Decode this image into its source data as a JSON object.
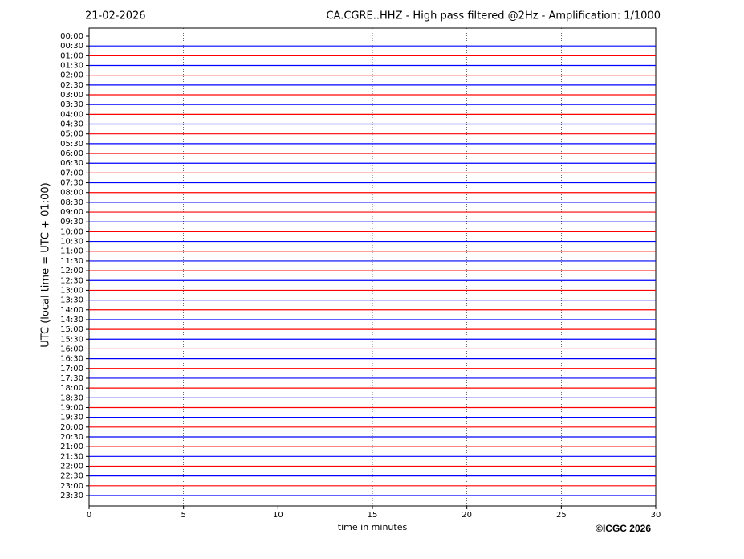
{
  "chart_data": {
    "type": "helicorder",
    "title_left": "21-02-2026",
    "title": "CA.CGRE..HHZ - High pass filtered @2Hz - Amplification: 1/1000",
    "xlabel": "time in minutes",
    "ylabel": "UTC (local time = UTC + 01:00)",
    "copyright": "©ICGC 2026",
    "xlim": [
      0,
      30
    ],
    "xticks": [
      0,
      5,
      10,
      15,
      20,
      25,
      30
    ],
    "grid": true,
    "y_labels": [
      "00:00",
      "00:30",
      "01:00",
      "01:30",
      "02:00",
      "02:30",
      "03:00",
      "03:30",
      "04:00",
      "04:30",
      "05:00",
      "05:30",
      "06:00",
      "06:30",
      "07:00",
      "07:30",
      "08:00",
      "08:30",
      "09:00",
      "09:30",
      "10:00",
      "10:30",
      "11:00",
      "11:30",
      "12:00",
      "12:30",
      "13:00",
      "13:30",
      "14:00",
      "14:30",
      "15:00",
      "15:30",
      "16:00",
      "16:30",
      "17:00",
      "17:30",
      "18:00",
      "18:30",
      "19:00",
      "19:30",
      "20:00",
      "20:30",
      "21:00",
      "21:30",
      "22:00",
      "22:30",
      "23:00",
      "23:30"
    ],
    "trace_colors": [
      null,
      "#0000ff",
      "#ff0000",
      "#0000ff",
      "#ff0000",
      "#0000ff",
      "#ff0000",
      "#0000ff",
      "#ff0000",
      "#0000ff",
      "#ff0000",
      "#0000ff",
      "#ff0000",
      "#0000ff",
      "#ff0000",
      "#0000ff",
      "#ff0000",
      "#0000ff",
      "#ff0000",
      "#0000ff",
      "#ff0000",
      "#0000ff",
      "#ff0000",
      "#0000ff",
      "#ff0000",
      "#0000ff",
      "#ff0000",
      "#0000ff",
      "#ff0000",
      "#0000ff",
      "#ff0000",
      "#0000ff",
      "#ff0000",
      "#0000ff",
      "#ff0000",
      "#0000ff",
      "#ff0000",
      "#0000ff",
      "#ff0000",
      "#0000ff",
      "#ff0000",
      "#0000ff",
      "#ff0000",
      "#0000ff",
      "#ff0000",
      "#0000ff",
      "#ff0000",
      "#0000ff"
    ]
  }
}
